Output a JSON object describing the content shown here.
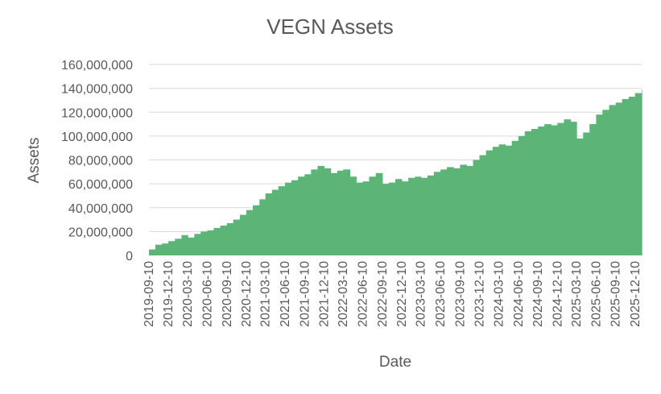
{
  "chart_data": {
    "type": "bar",
    "title": "VEGN Assets",
    "xlabel": "Date",
    "ylabel": "Assets",
    "ylim": [
      0,
      160000000
    ],
    "y_ticks": [
      0,
      20000000,
      40000000,
      60000000,
      80000000,
      100000000,
      120000000,
      140000000,
      160000000
    ],
    "y_tick_labels": [
      "0",
      "20,000,000",
      "40,000,000",
      "60,000,000",
      "80,000,000",
      "100,000,000",
      "120,000,000",
      "140,000,000",
      "160,000,000"
    ],
    "x_tick_labels": [
      "2019-09-10",
      "2019-12-10",
      "2020-03-10",
      "2020-06-10",
      "2020-09-10",
      "2020-12-10",
      "2021-03-10",
      "2021-06-10",
      "2021-09-10",
      "2021-12-10",
      "2022-03-10",
      "2022-06-10",
      "2022-09-10",
      "2022-12-10",
      "2023-03-10",
      "2023-06-10",
      "2023-09-10",
      "2023-12-10",
      "2024-03-10",
      "2024-06-10",
      "2024-09-10",
      "2024-12-10",
      "2025-03-10",
      "2025-06-10",
      "2025-09-10",
      "2025-12-10"
    ],
    "grid": true,
    "legend": "none",
    "color": "#5cb577",
    "series": [
      {
        "x": [
          "2019-09-10",
          "2019-10-10",
          "2019-11-10",
          "2019-12-10",
          "2020-01-10",
          "2020-02-10",
          "2020-03-10",
          "2020-04-10",
          "2020-05-10",
          "2020-06-10",
          "2020-07-10",
          "2020-08-10",
          "2020-09-10",
          "2020-10-10",
          "2020-11-10",
          "2020-12-10",
          "2021-01-10",
          "2021-02-10",
          "2021-03-10",
          "2021-04-10",
          "2021-05-10",
          "2021-06-10",
          "2021-07-10",
          "2021-08-10",
          "2021-09-10",
          "2021-10-10",
          "2021-11-10",
          "2021-12-10",
          "2022-01-10",
          "2022-02-10",
          "2022-03-10",
          "2022-04-10",
          "2022-05-10",
          "2022-06-10",
          "2022-07-10",
          "2022-08-10",
          "2022-09-10",
          "2022-10-10",
          "2022-11-10",
          "2022-12-10",
          "2023-01-10",
          "2023-02-10",
          "2023-03-10",
          "2023-04-10",
          "2023-05-10",
          "2023-06-10",
          "2023-07-10",
          "2023-08-10",
          "2023-09-10",
          "2023-10-10",
          "2023-11-10",
          "2023-12-10",
          "2024-01-10",
          "2024-02-10",
          "2024-03-10",
          "2024-04-10",
          "2024-05-10",
          "2024-06-10",
          "2024-07-10",
          "2024-08-10",
          "2024-09-10",
          "2024-10-10",
          "2024-11-10",
          "2024-12-10",
          "2025-01-10",
          "2025-02-10",
          "2025-03-10",
          "2025-04-10",
          "2025-05-10",
          "2025-06-10",
          "2025-07-10",
          "2025-08-10",
          "2025-09-10",
          "2025-10-10",
          "2025-11-10",
          "2025-12-10",
          "2026-01-10"
        ],
        "values": [
          5000000,
          9000000,
          10000000,
          12000000,
          14000000,
          17000000,
          15000000,
          18000000,
          20000000,
          21000000,
          23000000,
          25000000,
          27000000,
          30000000,
          34000000,
          38000000,
          42000000,
          47000000,
          52000000,
          55000000,
          58000000,
          61000000,
          63000000,
          66000000,
          68000000,
          72000000,
          75000000,
          73000000,
          69000000,
          71000000,
          72000000,
          66000000,
          61000000,
          62000000,
          66000000,
          69000000,
          60000000,
          61000000,
          64000000,
          62000000,
          65000000,
          66000000,
          65000000,
          67000000,
          70000000,
          72000000,
          74000000,
          73000000,
          76000000,
          75000000,
          80000000,
          84000000,
          88000000,
          91000000,
          93000000,
          92000000,
          96000000,
          100000000,
          104000000,
          106000000,
          108000000,
          110000000,
          109000000,
          111000000,
          114000000,
          112000000,
          98000000,
          103000000,
          110000000,
          118000000,
          122000000,
          126000000,
          128000000,
          131000000,
          133000000,
          136000000,
          139000000
        ]
      }
    ]
  }
}
